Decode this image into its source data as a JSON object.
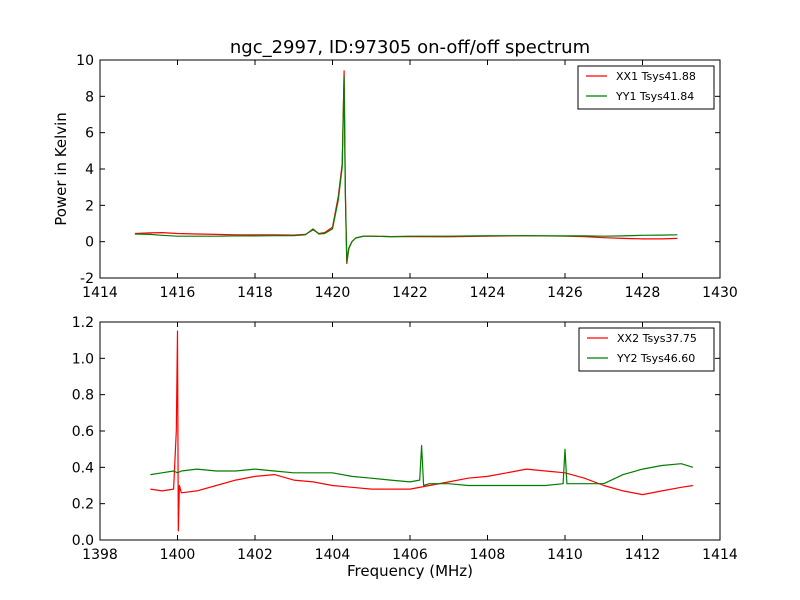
{
  "chart_data": [
    {
      "type": "line",
      "title": "ngc_2997, ID:97305 on-off/off spectrum",
      "xlabel": "",
      "ylabel": "Power in Kelvin",
      "xlim": [
        1414,
        1430
      ],
      "ylim": [
        -2,
        10
      ],
      "xticks": [
        1414,
        1416,
        1418,
        1420,
        1422,
        1424,
        1426,
        1428,
        1430
      ],
      "yticks": [
        -2,
        0,
        2,
        4,
        6,
        8,
        10
      ],
      "grid": false,
      "legend": "top-right",
      "series": [
        {
          "name": "XX1 Tsys41.88",
          "color": "#ff0000",
          "x": [
            1414.9,
            1415.3,
            1415.6,
            1416.0,
            1416.5,
            1417.0,
            1417.5,
            1418.0,
            1418.5,
            1419.0,
            1419.3,
            1419.5,
            1419.65,
            1419.8,
            1420.0,
            1420.15,
            1420.25,
            1420.3,
            1420.33,
            1420.37,
            1420.42,
            1420.5,
            1420.6,
            1420.8,
            1421.0,
            1421.5,
            1422.0,
            1423.0,
            1424.0,
            1425.0,
            1426.0,
            1426.5,
            1427.0,
            1427.5,
            1428.0,
            1428.5,
            1428.9
          ],
          "values": [
            0.45,
            0.48,
            0.5,
            0.45,
            0.42,
            0.4,
            0.38,
            0.38,
            0.38,
            0.36,
            0.4,
            0.65,
            0.45,
            0.5,
            0.8,
            2.5,
            4.3,
            9.4,
            3.0,
            -1.2,
            -0.4,
            0.0,
            0.2,
            0.3,
            0.3,
            0.28,
            0.28,
            0.27,
            0.3,
            0.33,
            0.3,
            0.28,
            0.22,
            0.18,
            0.15,
            0.15,
            0.18
          ]
        },
        {
          "name": "YY1 Tsys41.84",
          "color": "#007f00",
          "x": [
            1414.9,
            1415.3,
            1415.6,
            1416.0,
            1416.5,
            1417.0,
            1417.5,
            1418.0,
            1418.5,
            1419.0,
            1419.3,
            1419.5,
            1419.65,
            1419.8,
            1420.0,
            1420.15,
            1420.25,
            1420.3,
            1420.33,
            1420.37,
            1420.42,
            1420.5,
            1420.6,
            1420.8,
            1421.0,
            1421.5,
            1422.0,
            1423.0,
            1424.0,
            1425.0,
            1426.0,
            1426.5,
            1427.0,
            1427.5,
            1428.0,
            1428.5,
            1428.9
          ],
          "values": [
            0.42,
            0.4,
            0.35,
            0.3,
            0.3,
            0.3,
            0.32,
            0.32,
            0.33,
            0.33,
            0.38,
            0.7,
            0.42,
            0.45,
            0.7,
            2.3,
            4.1,
            9.1,
            2.7,
            -1.1,
            -0.35,
            0.0,
            0.2,
            0.3,
            0.3,
            0.28,
            0.3,
            0.3,
            0.33,
            0.33,
            0.32,
            0.32,
            0.3,
            0.32,
            0.35,
            0.36,
            0.38
          ]
        }
      ]
    },
    {
      "type": "line",
      "title": "",
      "xlabel": "Frequency (MHz)",
      "ylabel": "",
      "xlim": [
        1398,
        1414
      ],
      "ylim": [
        0.0,
        1.2
      ],
      "xticks": [
        1398,
        1400,
        1402,
        1404,
        1406,
        1408,
        1410,
        1412,
        1414
      ],
      "yticks": [
        0.0,
        0.2,
        0.4,
        0.6,
        0.8,
        1.0,
        1.2
      ],
      "grid": false,
      "legend": "top-right",
      "series": [
        {
          "name": "XX2 Tsys37.75",
          "color": "#ff0000",
          "x": [
            1399.3,
            1399.6,
            1399.9,
            1399.97,
            1400.0,
            1400.02,
            1400.05,
            1400.1,
            1400.5,
            1401.0,
            1401.5,
            1402.0,
            1402.5,
            1403.0,
            1403.5,
            1404.0,
            1404.5,
            1405.0,
            1405.5,
            1406.0,
            1406.5,
            1407.0,
            1407.5,
            1408.0,
            1408.5,
            1409.0,
            1409.5,
            1410.0,
            1410.5,
            1411.0,
            1411.5,
            1412.0,
            1412.5,
            1413.0,
            1413.3
          ],
          "values": [
            0.28,
            0.27,
            0.28,
            0.6,
            1.15,
            0.05,
            0.3,
            0.26,
            0.27,
            0.3,
            0.33,
            0.35,
            0.36,
            0.33,
            0.32,
            0.3,
            0.29,
            0.28,
            0.28,
            0.28,
            0.3,
            0.32,
            0.34,
            0.35,
            0.37,
            0.39,
            0.38,
            0.37,
            0.34,
            0.3,
            0.27,
            0.25,
            0.27,
            0.29,
            0.3
          ]
        },
        {
          "name": "YY2 Tsys46.60",
          "color": "#007f00",
          "x": [
            1399.3,
            1399.6,
            1399.9,
            1400.0,
            1400.1,
            1400.5,
            1401.0,
            1401.5,
            1402.0,
            1402.5,
            1403.0,
            1403.5,
            1404.0,
            1404.5,
            1405.0,
            1405.5,
            1406.0,
            1406.25,
            1406.3,
            1406.35,
            1406.5,
            1407.0,
            1407.5,
            1408.0,
            1408.5,
            1409.0,
            1409.5,
            1409.95,
            1410.0,
            1410.05,
            1410.5,
            1411.0,
            1411.5,
            1412.0,
            1412.5,
            1413.0,
            1413.3
          ],
          "values": [
            0.36,
            0.37,
            0.38,
            0.37,
            0.38,
            0.39,
            0.38,
            0.38,
            0.39,
            0.38,
            0.37,
            0.37,
            0.37,
            0.35,
            0.34,
            0.33,
            0.32,
            0.33,
            0.52,
            0.3,
            0.31,
            0.31,
            0.3,
            0.3,
            0.3,
            0.3,
            0.3,
            0.31,
            0.5,
            0.31,
            0.31,
            0.31,
            0.36,
            0.39,
            0.41,
            0.42,
            0.4
          ]
        }
      ]
    }
  ]
}
